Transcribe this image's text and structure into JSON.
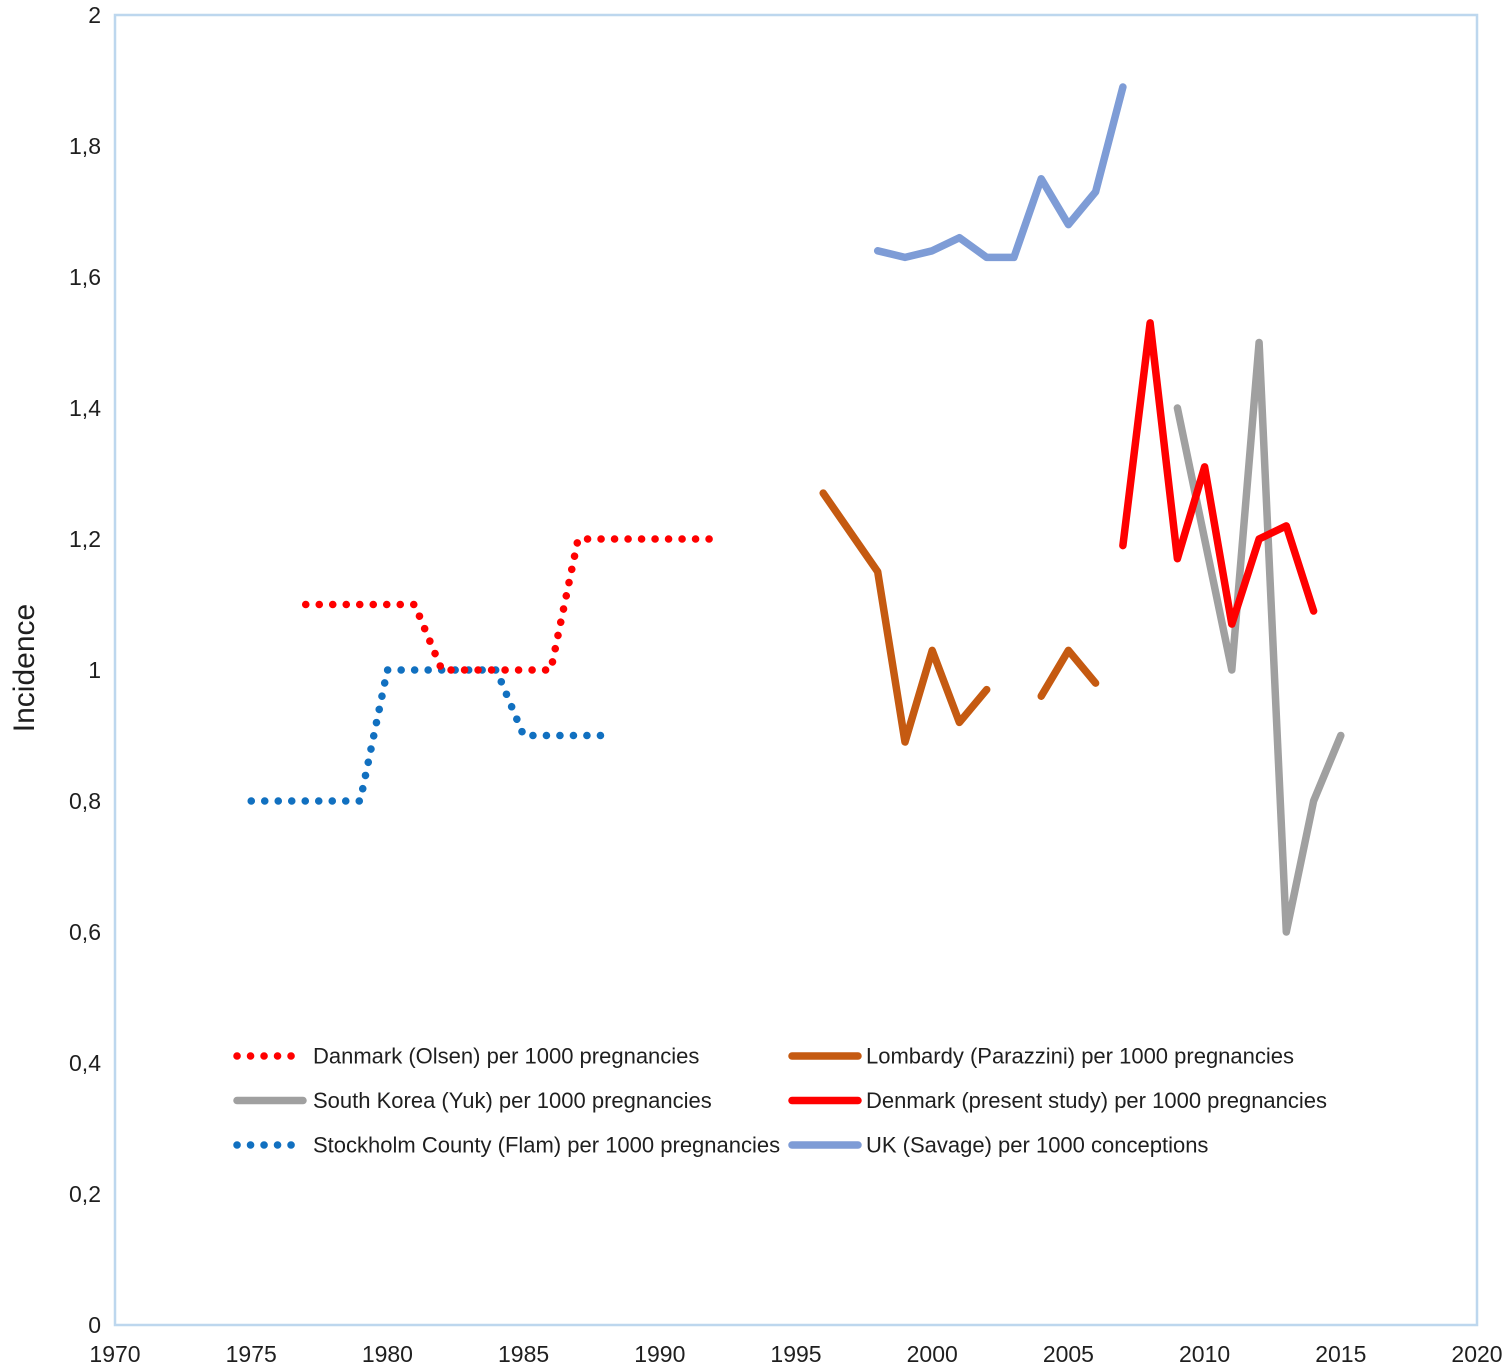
{
  "chart_data": {
    "type": "line",
    "title": "",
    "xlabel": "",
    "ylabel": "Incidence",
    "xlim": [
      1970,
      2020
    ],
    "ylim": [
      0,
      2
    ],
    "grid": false,
    "decimal_separator": ",",
    "plot_border_color": "#BDD7EE",
    "background_color": "#FFFFFF",
    "legend_position": "inside-bottom-two-columns",
    "x_ticks": [
      {
        "value": 1970,
        "label": "1970"
      },
      {
        "value": 1975,
        "label": "1975"
      },
      {
        "value": 1980,
        "label": "1980"
      },
      {
        "value": 1985,
        "label": "1985"
      },
      {
        "value": 1990,
        "label": "1990"
      },
      {
        "value": 1995,
        "label": "1995"
      },
      {
        "value": 2000,
        "label": "2000"
      },
      {
        "value": 2005,
        "label": "2005"
      },
      {
        "value": 2010,
        "label": "2010"
      },
      {
        "value": 2015,
        "label": "2015"
      },
      {
        "value": 2020,
        "label": "2020"
      }
    ],
    "y_ticks": [
      {
        "value": 0,
        "label": "0"
      },
      {
        "value": 0.2,
        "label": "0,2"
      },
      {
        "value": 0.4,
        "label": "0,4"
      },
      {
        "value": 0.6,
        "label": "0,6"
      },
      {
        "value": 0.8,
        "label": "0,8"
      },
      {
        "value": 1,
        "label": "1"
      },
      {
        "value": 1.2,
        "label": "1,2"
      },
      {
        "value": 1.4,
        "label": "1,4"
      },
      {
        "value": 1.6,
        "label": "1,6"
      },
      {
        "value": 1.8,
        "label": "1,8"
      },
      {
        "value": 2,
        "label": "2"
      }
    ],
    "series": [
      {
        "id": "stockholm_flam",
        "name": "Stockholm County (Flam) per 1000 pregnancies",
        "color": "#1170C0",
        "style": "dotted",
        "points": [
          [
            1975,
            0.8
          ],
          [
            1979,
            0.8
          ],
          [
            1980,
            1.0
          ],
          [
            1984,
            1.0
          ],
          [
            1985,
            0.9
          ],
          [
            1988,
            0.9
          ]
        ]
      },
      {
        "id": "danmark_olsen",
        "name": "Danmark (Olsen) per 1000 pregnancies",
        "color": "#FF0000",
        "style": "dotted",
        "points": [
          [
            1977,
            1.1
          ],
          [
            1981,
            1.1
          ],
          [
            1982,
            1.0
          ],
          [
            1986,
            1.0
          ],
          [
            1987,
            1.2
          ],
          [
            1992,
            1.2
          ]
        ]
      },
      {
        "id": "lombardy_parazzini",
        "name": "Lombardy (Parazzini) per 1000 pregnancies",
        "color": "#C55A11",
        "style": "solid",
        "points": [
          [
            1996,
            1.27
          ],
          [
            1998,
            1.15
          ],
          [
            1999,
            0.89
          ],
          [
            2000,
            1.03
          ],
          [
            2001,
            0.92
          ],
          [
            2002,
            0.97
          ],
          null,
          [
            2004,
            0.96
          ],
          [
            2005,
            1.03
          ],
          [
            2006,
            0.98
          ]
        ]
      },
      {
        "id": "south_korea_yuk",
        "name": "South Korea (Yuk) per 1000 pregnancies",
        "color": "#A0A0A0",
        "style": "solid",
        "points": [
          [
            2009,
            1.4
          ],
          [
            2010,
            1.2
          ],
          [
            2011,
            1.0
          ],
          [
            2012,
            1.5
          ],
          [
            2013,
            0.6
          ],
          [
            2014,
            0.8
          ],
          [
            2015,
            0.9
          ]
        ]
      },
      {
        "id": "denmark_present",
        "name": "Denmark (present study) per 1000 pregnancies",
        "color": "#FF0000",
        "style": "solid",
        "points": [
          [
            2007,
            1.19
          ],
          [
            2008,
            1.53
          ],
          [
            2009,
            1.17
          ],
          [
            2010,
            1.31
          ],
          [
            2011,
            1.07
          ],
          [
            2012,
            1.2
          ],
          [
            2013,
            1.22
          ],
          [
            2014,
            1.09
          ]
        ]
      },
      {
        "id": "uk_savage",
        "name": "UK (Savage) per 1000 conceptions",
        "color": "#7E9CD6",
        "style": "solid",
        "points": [
          [
            1998,
            1.64
          ],
          [
            1999,
            1.63
          ],
          [
            2000,
            1.64
          ],
          [
            2001,
            1.66
          ],
          [
            2002,
            1.63
          ],
          [
            2003,
            1.63
          ],
          [
            2004,
            1.75
          ],
          [
            2005,
            1.68
          ],
          [
            2006,
            1.73
          ],
          [
            2007,
            1.89
          ]
        ]
      }
    ],
    "legend_columns": [
      [
        "danmark_olsen",
        "south_korea_yuk",
        "stockholm_flam"
      ],
      [
        "lombardy_parazzini",
        "denmark_present",
        "uk_savage"
      ]
    ]
  }
}
